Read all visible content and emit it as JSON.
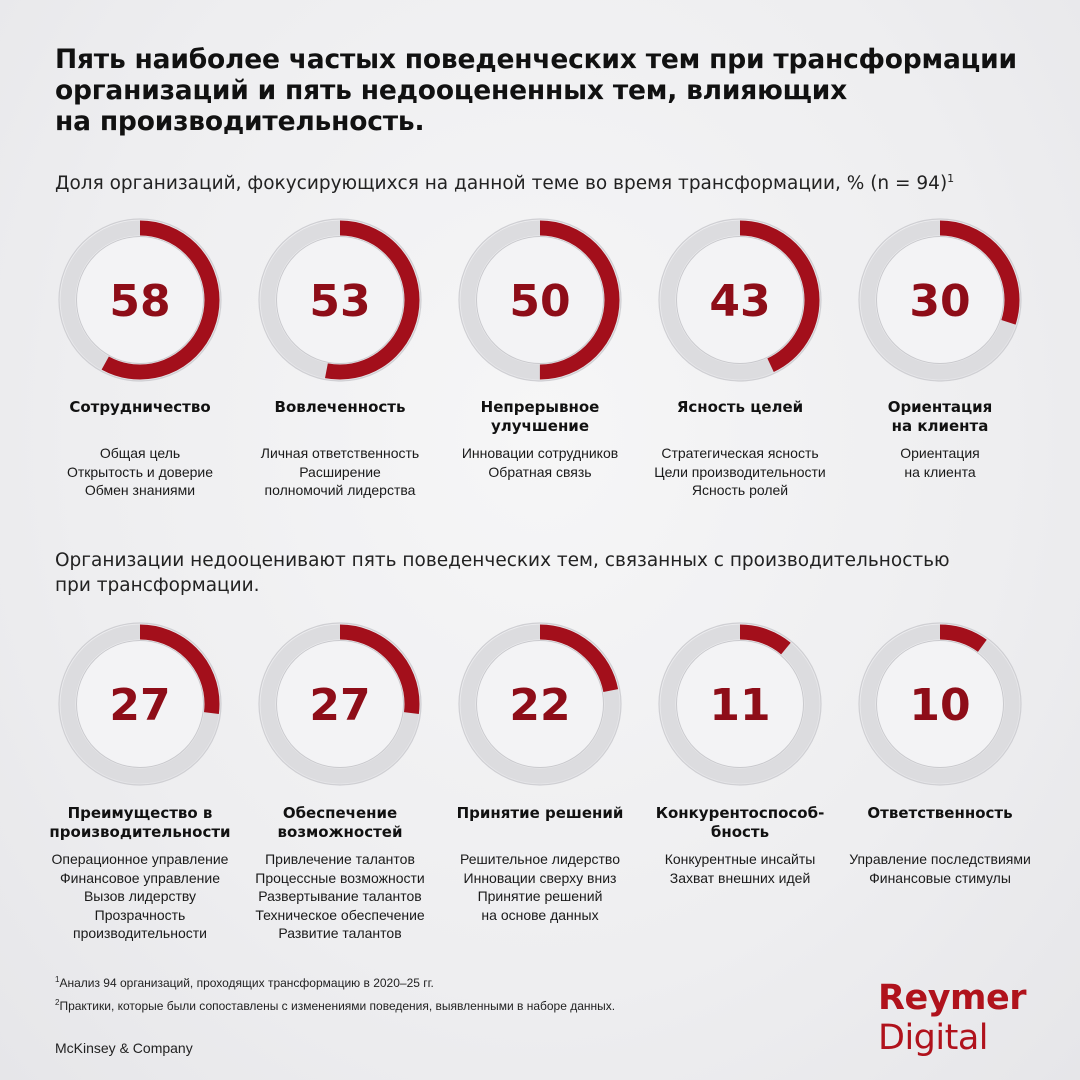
{
  "title": "Пять наиболее частых поведенческих тем при трансформации\nорганизаций и пять недооцененных тем, влияющих\nна производительность.",
  "subtitle_top": "Доля организаций, фокусирующихся на данной теме во время трансформации, % (n = 94)",
  "subtitle_top_sup": "1",
  "subtitle_bottom": "Организации недооценивают пять поведенческих тем, связанных с производительностью\nпри трансформации.",
  "chart_data": {
    "type": "donut",
    "units": "%",
    "colors": {
      "accent": "#a30f1b",
      "ring": "#d9d9dc"
    },
    "top": [
      {
        "value": 58,
        "theme": "Сотрудничество",
        "items": [
          "Общая цель",
          "Открытость и доверие",
          "Обмен знаниями"
        ]
      },
      {
        "value": 53,
        "theme": "Вовлеченность",
        "items": [
          "Личная ответственность",
          "Расширение\nполномочий лидерства"
        ]
      },
      {
        "value": 50,
        "theme": "Непрерывное\nулучшение",
        "items": [
          "Инновации сотрудников",
          "Обратная связь"
        ]
      },
      {
        "value": 43,
        "theme": "Ясность целей",
        "items": [
          "Стратегическая ясность",
          "Цели производительности",
          "Ясность ролей"
        ]
      },
      {
        "value": 30,
        "theme": "Ориентация\nна клиента",
        "items": [
          "Ориентация\nна клиента"
        ]
      }
    ],
    "bottom": [
      {
        "value": 27,
        "theme": "Преимущество в\nпроизводительности",
        "items": [
          "Операционное управление",
          "Финансовое управление",
          "Вызов лидерству",
          "Прозрачность\nпроизводительности"
        ]
      },
      {
        "value": 27,
        "theme": "Обеспечение\nвозможностей",
        "items": [
          "Привлечение талантов",
          "Процессные возможности",
          "Развертывание талантов",
          "Техническое обеспечение",
          "Развитие талантов"
        ]
      },
      {
        "value": 22,
        "theme": "Принятие решений",
        "items": [
          "Решительное лидерство",
          "Инновации сверху вниз",
          "Принятие решений\nна основе данных"
        ]
      },
      {
        "value": 11,
        "theme": "Конкурентоспособ-\nбность",
        "items": [
          "Конкурентные инсайты",
          "Захват внешних идей"
        ]
      },
      {
        "value": 10,
        "theme": "Ответственность",
        "items": [
          "Управление последствиями",
          "Финансовые стимулы"
        ]
      }
    ]
  },
  "footnotes": {
    "note1_sup": "1",
    "note1": "Анализ 94 организаций, проходящих трансформацию в 2020–25 гг.",
    "note2_sup": "2",
    "note2": "Практики, которые были сопоставлены с изменениями поведения, выявленными в наборе данных."
  },
  "source": "McKinsey & Company",
  "logo": {
    "line1": "Reymer",
    "line2": "Digital"
  }
}
